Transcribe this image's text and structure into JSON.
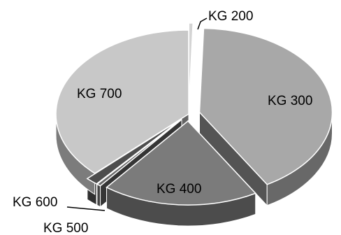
{
  "chart_data": {
    "type": "pie",
    "title": "",
    "categories": [
      "KG 200",
      "KG 300",
      "KG 400",
      "KG 500",
      "KG 600",
      "KG 700"
    ],
    "values": [
      0.5,
      41,
      19,
      0.5,
      1.5,
      37.5
    ],
    "explode": [
      true,
      true,
      true,
      true,
      true,
      false
    ],
    "depth_3d": true,
    "legend": "none",
    "data_labels": "category-name",
    "colors": {
      "KG 200": "#d4d4d4",
      "KG 300": "#a8a8a8",
      "KG 400": "#7b7b7b",
      "KG 500": "#6a6a6a",
      "KG 600": "#4e4e4e",
      "KG 700": "#c8c8c8"
    }
  }
}
